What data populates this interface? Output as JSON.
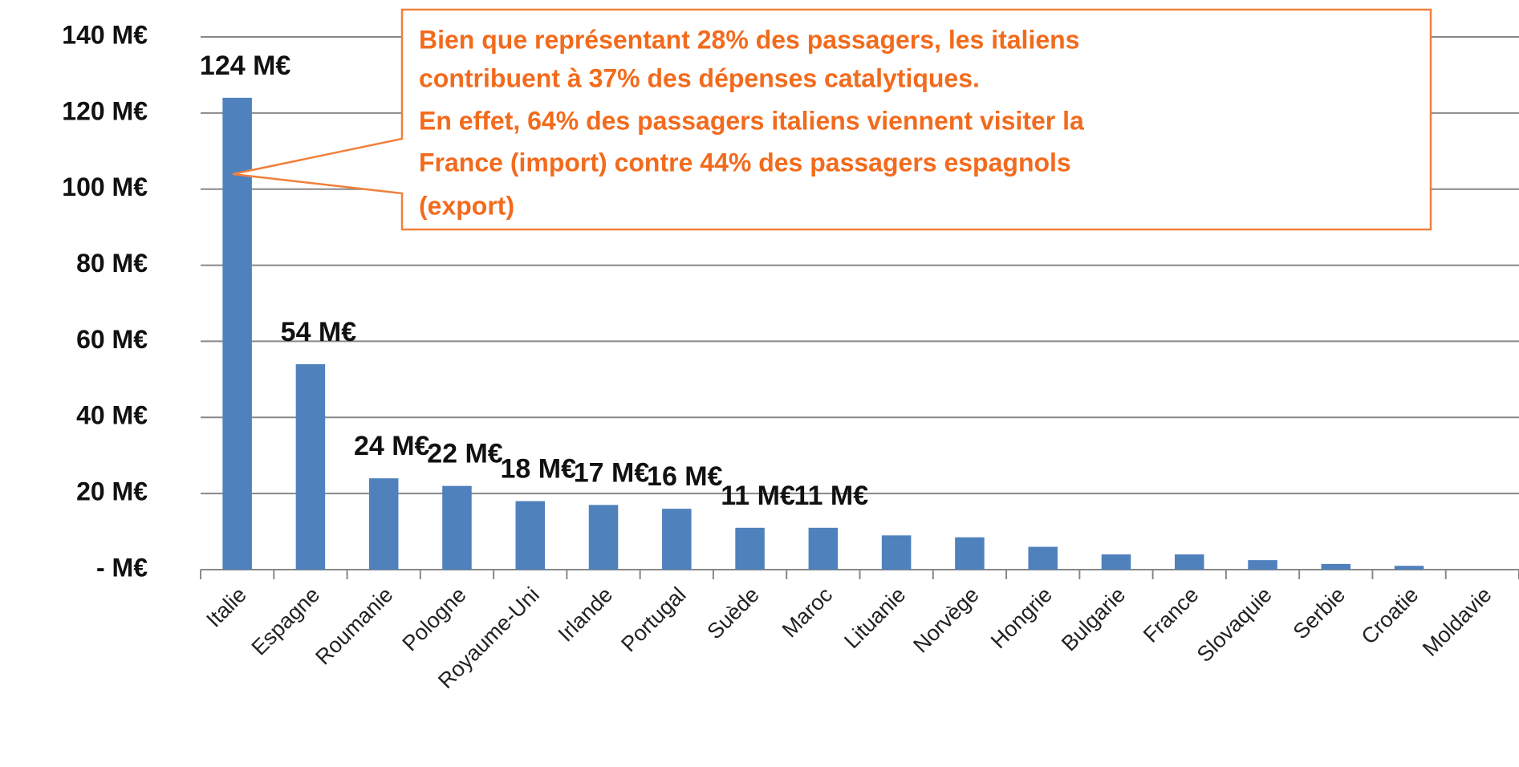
{
  "chart_data": {
    "type": "bar",
    "categories": [
      "Italie",
      "Espagne",
      "Roumanie",
      "Pologne",
      "Royaume-Uni",
      "Irlande",
      "Portugal",
      "Suède",
      "Maroc",
      "Lituanie",
      "Norvège",
      "Hongrie",
      "Bulgarie",
      "France",
      "Slovaquie",
      "Serbie",
      "Croatie",
      "Moldavie"
    ],
    "values": [
      124,
      54,
      24,
      22,
      18,
      17,
      16,
      11,
      11,
      9,
      8.5,
      6,
      4,
      4,
      2.5,
      1.5,
      1,
      0
    ],
    "value_labels": [
      "124 M€",
      "54 M€",
      "24 M€",
      "22 M€",
      "18 M€",
      "17 M€",
      "16 M€",
      "11 M€",
      "11 M€",
      null,
      null,
      null,
      null,
      null,
      null,
      null,
      null,
      null
    ],
    "color": "#4f81bd",
    "ylim": [
      0,
      140
    ],
    "yticks": [
      {
        "value": 0,
        "label": "-   M€"
      },
      {
        "value": 20,
        "label": "20 M€"
      },
      {
        "value": 40,
        "label": "40 M€"
      },
      {
        "value": 60,
        "label": "60 M€"
      },
      {
        "value": 80,
        "label": "80 M€"
      },
      {
        "value": 100,
        "label": "100 M€"
      },
      {
        "value": 120,
        "label": "120 M€"
      },
      {
        "value": 140,
        "label": "140 M€"
      }
    ],
    "grid": true,
    "annotation": [
      "Bien que représentant 28% des passagers, les italiens",
      "contribuent à 37% des dépenses catalytiques.",
      "En effet, 64% des passagers italiens viennent visiter la",
      "France (import) contre 44% des passagers espagnols",
      "(export)"
    ]
  }
}
